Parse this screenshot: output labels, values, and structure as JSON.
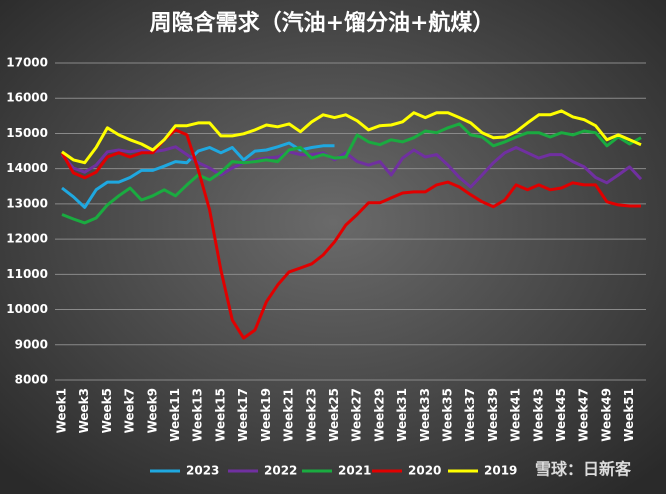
{
  "chart_data": {
    "type": "line",
    "title": "周隐含需求（汽油+馏分油+航煤）",
    "categories": [
      "Week1",
      null,
      "Week3",
      null,
      "Week5",
      null,
      "Week7",
      null,
      "Week9",
      null,
      "Week11",
      null,
      "Week13",
      null,
      "Week15",
      null,
      "Week17",
      null,
      "Week19",
      null,
      "Week21",
      null,
      "Week23",
      null,
      "Week25",
      null,
      "Week27",
      null,
      "Week29",
      null,
      "Week31",
      null,
      "Week33",
      null,
      "Week35",
      null,
      "Week37",
      null,
      "Week39",
      null,
      "Week41",
      null,
      "Week43",
      null,
      "Week45",
      null,
      "Week47",
      null,
      "Week49",
      null,
      "Week51",
      null
    ],
    "ylim": [
      8000,
      17000
    ],
    "yticks": [
      8000,
      9000,
      10000,
      11000,
      12000,
      13000,
      14000,
      15000,
      16000,
      17000
    ],
    "grid": true,
    "legend": "bottom",
    "series": [
      {
        "name": "2023",
        "color": "#1fa8e0",
        "values": [
          13450,
          13200,
          12900,
          13400,
          13620,
          13620,
          13750,
          13950,
          13950,
          14070,
          14200,
          14170,
          14500,
          14600,
          14450,
          14600,
          14250,
          14500,
          14530,
          14620,
          14730,
          14530,
          14600,
          14650,
          14650,
          null,
          null,
          null,
          null,
          null,
          null,
          null,
          null,
          null,
          null,
          null,
          null,
          null,
          null,
          null,
          null,
          null,
          null,
          null,
          null,
          null,
          null,
          null,
          null,
          null,
          null,
          null
        ]
      },
      {
        "name": "2022",
        "color": "#7030a0",
        "values": [
          14400,
          14020,
          13900,
          14100,
          14480,
          14530,
          14480,
          14530,
          14480,
          14530,
          14620,
          14400,
          14170,
          14020,
          13820,
          14020,
          14170,
          14250,
          14300,
          14330,
          14480,
          14400,
          14400,
          14450,
          14250,
          14450,
          14200,
          14100,
          14200,
          13820,
          14300,
          14530,
          14330,
          14400,
          14100,
          13750,
          13480,
          13820,
          14170,
          14450,
          14600,
          14450,
          14300,
          14400,
          14400,
          14200,
          14050,
          13750,
          13600,
          13820,
          14050,
          13700
        ]
      },
      {
        "name": "2021",
        "color": "#1aab40",
        "values": [
          12700,
          12570,
          12460,
          12600,
          12970,
          13230,
          13450,
          13110,
          13230,
          13400,
          13230,
          13540,
          13820,
          13680,
          13900,
          14200,
          14170,
          14200,
          14250,
          14200,
          14530,
          14600,
          14300,
          14400,
          14300,
          14330,
          14960,
          14760,
          14680,
          14820,
          14760,
          14880,
          15070,
          15020,
          15160,
          15270,
          14960,
          14900,
          14650,
          14760,
          14900,
          15020,
          15020,
          14900,
          15020,
          14960,
          15070,
          15020,
          14650,
          14900,
          14700,
          14880
        ]
      },
      {
        "name": "2020",
        "color": "#e00000",
        "values": [
          14450,
          13880,
          13740,
          13900,
          14330,
          14450,
          14330,
          14450,
          14450,
          14820,
          15100,
          14960,
          13970,
          12830,
          11120,
          9700,
          9190,
          9420,
          10220,
          10700,
          11070,
          11180,
          11300,
          11550,
          11920,
          12400,
          12700,
          13030,
          13030,
          13170,
          13310,
          13340,
          13340,
          13540,
          13620,
          13480,
          13260,
          13060,
          12920,
          13110,
          13540,
          13400,
          13540,
          13400,
          13450,
          13600,
          13540,
          13540,
          13060,
          12970,
          12940,
          12940
        ]
      },
      {
        "name": "2019",
        "color": "#ffff00",
        "values": [
          14480,
          14250,
          14170,
          14600,
          15160,
          14960,
          14820,
          14700,
          14530,
          14820,
          15220,
          15220,
          15300,
          15300,
          14930,
          14930,
          14990,
          15100,
          15240,
          15190,
          15270,
          15050,
          15330,
          15530,
          15450,
          15530,
          15360,
          15100,
          15220,
          15240,
          15330,
          15590,
          15450,
          15590,
          15590,
          15450,
          15300,
          15020,
          14880,
          14900,
          15050,
          15300,
          15530,
          15530,
          15640,
          15470,
          15390,
          15220,
          14820,
          14960,
          14820,
          14680
        ]
      }
    ],
    "watermark": "雪球：日新客"
  }
}
